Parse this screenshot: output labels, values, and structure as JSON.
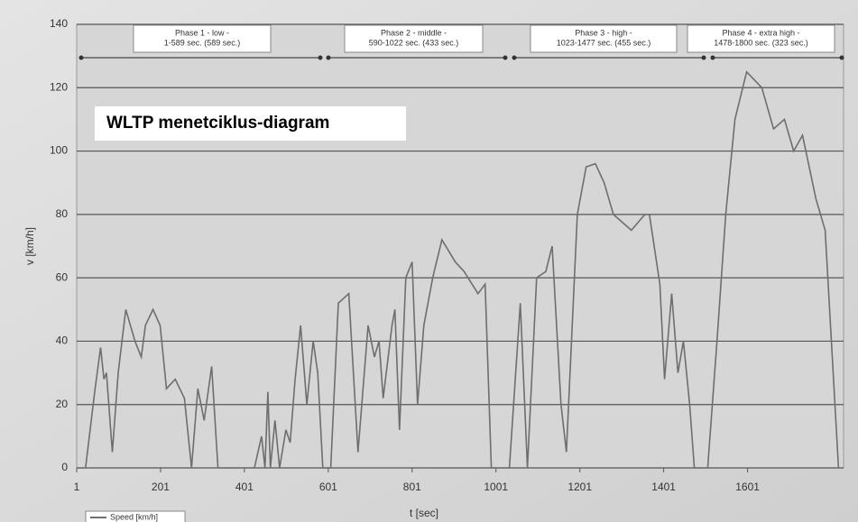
{
  "chart_data": {
    "type": "line",
    "title": "WLTP menetciklus-diagram",
    "x_label": "t [sec]",
    "y_label": "v [km/h]",
    "annotations": [
      {
        "lines": [
          "Phase 1 - low -",
          "1-589 sec. (589 sec.)"
        ]
      },
      {
        "lines": [
          "Phase 2 - middle -",
          "590-1022 sec. (433 sec.)"
        ]
      },
      {
        "lines": [
          "Phase 3 - high -",
          "1023-1477 sec. (455 sec.)"
        ]
      },
      {
        "lines": [
          "Phase 4 - extra high -",
          "1478-1800 sec. (323 sec.)"
        ]
      }
    ],
    "xlim": [
      1,
      1830
    ],
    "ylim": [
      0,
      140
    ],
    "xticks": [
      1,
      201,
      401,
      601,
      801,
      1001,
      1201,
      1401,
      1601
    ],
    "yticks": [
      0,
      20,
      40,
      60,
      80,
      100,
      120,
      140
    ],
    "grid": true,
    "series": [
      {
        "name": "Speed [km/h]",
        "color": "#6e6e6e",
        "x": [
          1,
          22,
          45,
          58,
          66,
          72,
          86,
          100,
          118,
          140,
          155,
          165,
          183,
          200,
          215,
          236,
          258,
          275,
          290,
          305,
          323,
          338,
          425,
          442,
          450,
          457,
          463,
          474,
          485,
          500,
          510,
          522,
          535,
          550,
          565,
          576,
          588,
          607,
          625,
          650,
          672,
          696,
          711,
          722,
          732,
          753,
          760,
          771,
          786,
          801,
          814,
          829,
          850,
          872,
          904,
          925,
          958,
          975,
          990,
          1033,
          1059,
          1076,
          1098,
          1120,
          1135,
          1156,
          1169,
          1195,
          1216,
          1238,
          1259,
          1281,
          1324,
          1356,
          1367,
          1392,
          1403,
          1420,
          1435,
          1448,
          1463,
          1474,
          1506,
          1528,
          1549,
          1571,
          1599,
          1635,
          1663,
          1689,
          1711,
          1732,
          1764,
          1786,
          1818
        ],
        "values": [
          0,
          0,
          25,
          38,
          28,
          30,
          5,
          30,
          50,
          40,
          35,
          45,
          50,
          45,
          25,
          28,
          22,
          0,
          25,
          15,
          32,
          0,
          0,
          10,
          0,
          24,
          0,
          15,
          0,
          12,
          8,
          28,
          45,
          20,
          40,
          30,
          0,
          0,
          52,
          55,
          5,
          45,
          35,
          40,
          22,
          45,
          50,
          12,
          60,
          65,
          20,
          45,
          60,
          72,
          65,
          62,
          55,
          58,
          0,
          0,
          52,
          0,
          60,
          62,
          70,
          20,
          5,
          80,
          95,
          96,
          90,
          80,
          75,
          80,
          80,
          58,
          28,
          55,
          30,
          40,
          20,
          0,
          0,
          40,
          80,
          110,
          125,
          120,
          107,
          110,
          100,
          105,
          85,
          75,
          0
        ]
      }
    ]
  }
}
